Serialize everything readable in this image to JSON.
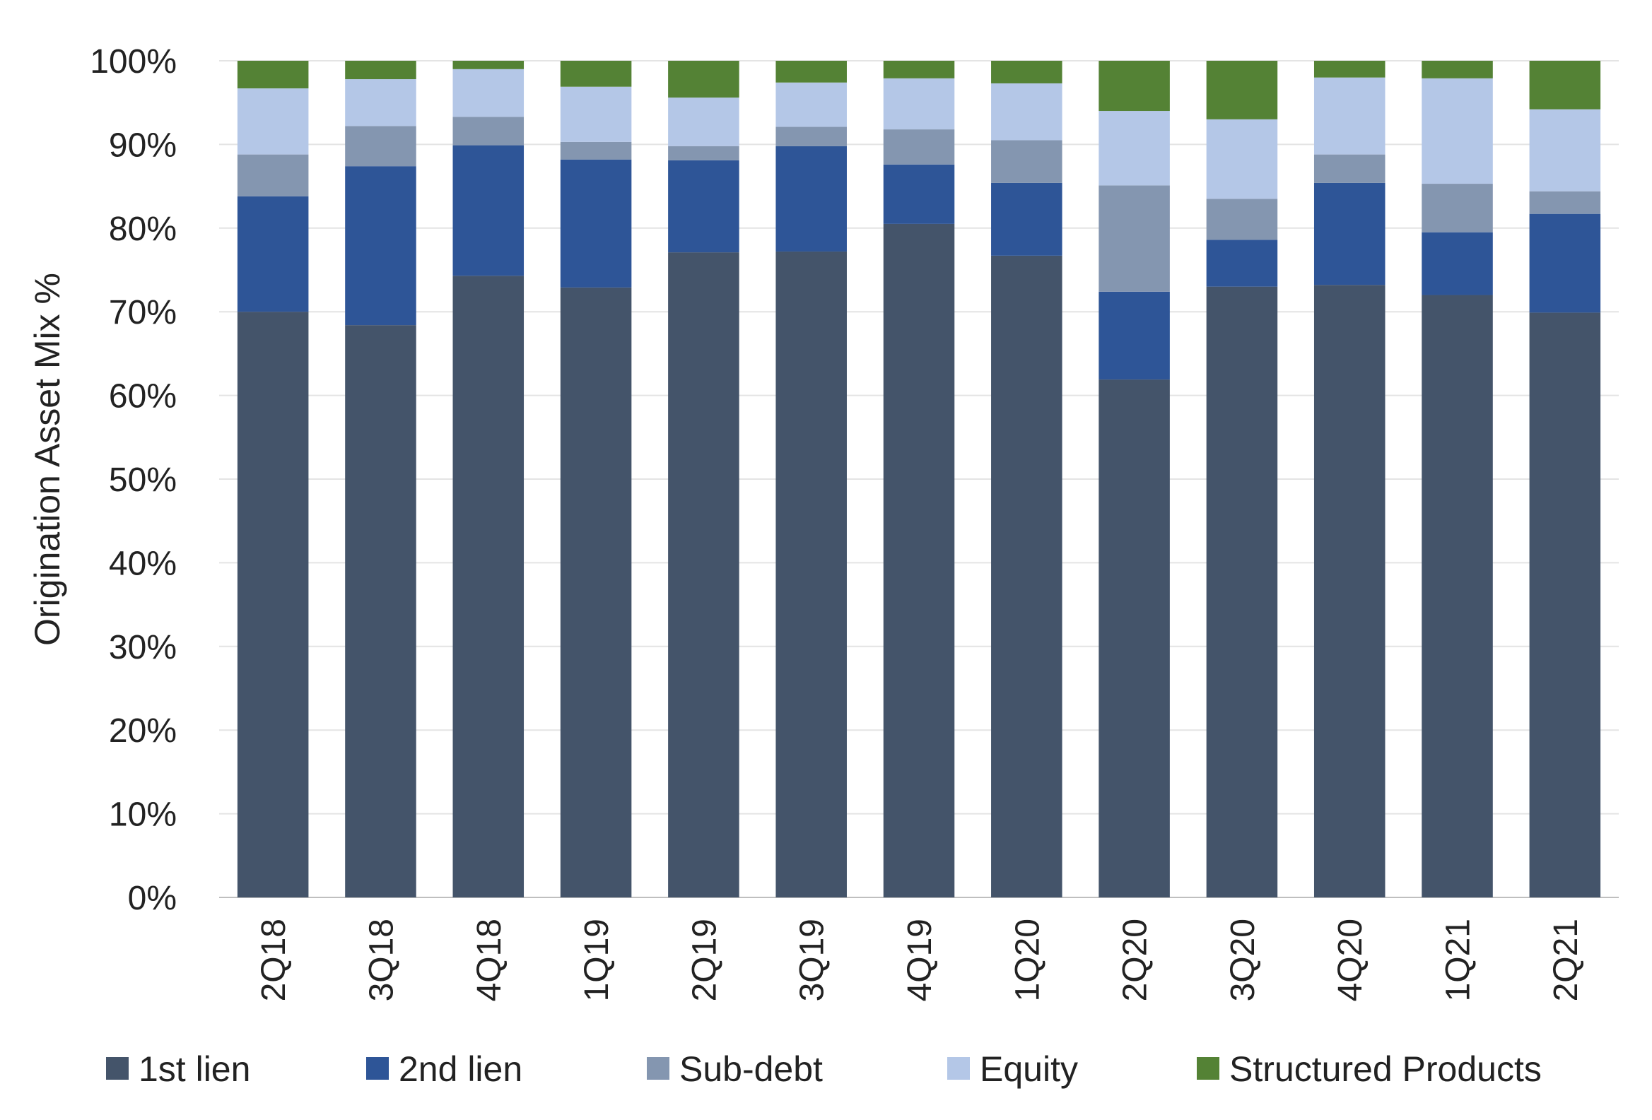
{
  "chart_data": {
    "type": "bar",
    "stacked": true,
    "ylabel": "Origination Asset Mix %",
    "xlabel": "",
    "ylim": [
      0,
      100
    ],
    "y_ticks": [
      "0%",
      "10%",
      "20%",
      "30%",
      "40%",
      "50%",
      "60%",
      "70%",
      "80%",
      "90%",
      "100%"
    ],
    "grid": "horizontal",
    "legend_position": "bottom",
    "categories": [
      "2Q18",
      "3Q18",
      "4Q18",
      "1Q19",
      "2Q19",
      "3Q19",
      "4Q19",
      "1Q20",
      "2Q20",
      "3Q20",
      "4Q20",
      "1Q21",
      "2Q21"
    ],
    "series": [
      {
        "name": "1st lien",
        "color": "#44546a",
        "values": [
          70.0,
          68.4,
          74.3,
          72.9,
          77.1,
          77.2,
          80.5,
          76.7,
          61.9,
          73.0,
          73.2,
          72.0,
          69.9
        ]
      },
      {
        "name": "2nd lien",
        "color": "#2e5597",
        "values": [
          13.8,
          19.0,
          15.6,
          15.3,
          11.0,
          12.6,
          7.1,
          8.7,
          10.5,
          5.6,
          12.2,
          7.5,
          11.8
        ]
      },
      {
        "name": "Sub-debt",
        "color": "#8496b0",
        "values": [
          5.0,
          4.8,
          3.4,
          2.1,
          1.7,
          2.3,
          4.2,
          5.1,
          12.7,
          4.9,
          3.4,
          5.8,
          2.7
        ]
      },
      {
        "name": "Equity",
        "color": "#b4c7e7",
        "values": [
          7.9,
          5.6,
          5.7,
          6.6,
          5.8,
          5.3,
          6.1,
          6.8,
          8.9,
          9.5,
          9.2,
          12.6,
          9.8
        ]
      },
      {
        "name": "Structured Products",
        "color": "#548235",
        "values": [
          3.3,
          2.2,
          1.0,
          3.1,
          4.4,
          2.6,
          2.1,
          2.7,
          6.0,
          7.0,
          2.0,
          2.1,
          5.8
        ]
      }
    ]
  }
}
